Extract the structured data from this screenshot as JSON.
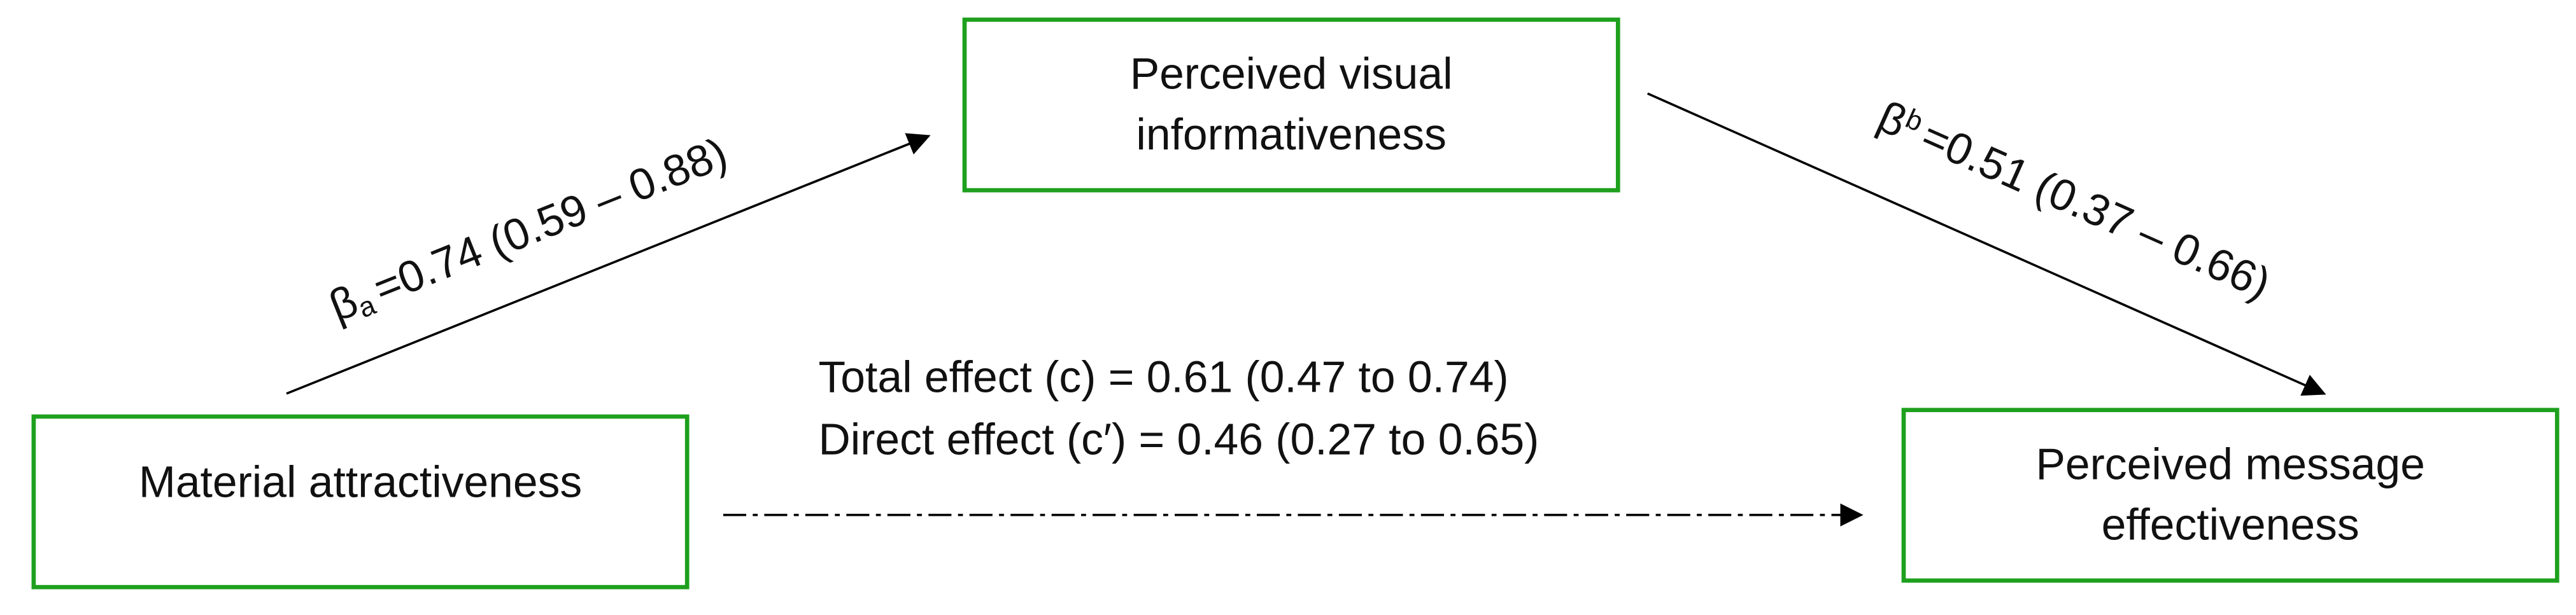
{
  "nodes": [
    {
      "lines": [
        "Material attractiveness"
      ]
    },
    {
      "lines": [
        "Perceived visual",
        "informativeness"
      ]
    },
    {
      "lines": [
        "Perceived message",
        "effectiveness"
      ]
    }
  ],
  "paths": [
    {
      "symbol": "β",
      "subscript": "a",
      "text": "=0.74 (0.59 – 0.88)"
    },
    {
      "symbol": "β",
      "subscript": "b",
      "text": "=0.51 (0.37 – 0.66)"
    }
  ],
  "effects": [
    "Total effect (c) = 0.61 (0.47 to 0.74)",
    "Direct effect (c′) = 0.46 (0.27 to 0.65)"
  ]
}
